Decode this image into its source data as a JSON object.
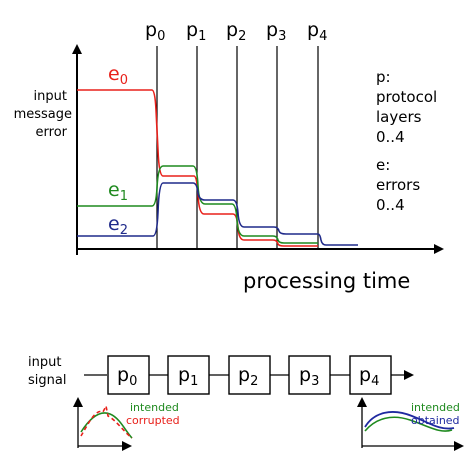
{
  "top_chart": {
    "y_axis_label": [
      "input",
      "message",
      "error"
    ],
    "x_axis_label": "processing time",
    "markers": [
      {
        "base": "p",
        "sub": "0"
      },
      {
        "base": "p",
        "sub": "1"
      },
      {
        "base": "p",
        "sub": "2"
      },
      {
        "base": "p",
        "sub": "3"
      },
      {
        "base": "p",
        "sub": "4"
      }
    ],
    "series": [
      {
        "base": "e",
        "sub": "0",
        "color": "#e8201a"
      },
      {
        "base": "e",
        "sub": "1",
        "color": "#1f8a1f"
      },
      {
        "base": "e",
        "sub": "2",
        "color": "#1f2a8a"
      }
    ],
    "legend_p": [
      "p:",
      "protocol",
      "layers",
      "0..4"
    ],
    "legend_e": [
      "e:",
      "errors",
      "0..4"
    ]
  },
  "pipeline": {
    "input_label": [
      "input",
      "signal"
    ],
    "stages": [
      {
        "base": "p",
        "sub": "0"
      },
      {
        "base": "p",
        "sub": "1"
      },
      {
        "base": "p",
        "sub": "2"
      },
      {
        "base": "p",
        "sub": "3"
      },
      {
        "base": "p",
        "sub": "4"
      }
    ]
  },
  "input_plot": {
    "intended_label": "intended",
    "corrupted_label": "corrupted",
    "intended_color": "#1f8a1f",
    "corrupted_color": "#e8201a"
  },
  "output_plot": {
    "intended_label": "intended",
    "obtained_label": "obtained",
    "intended_color": "#1f8a1f",
    "obtained_color": "#1f2aa0"
  }
}
